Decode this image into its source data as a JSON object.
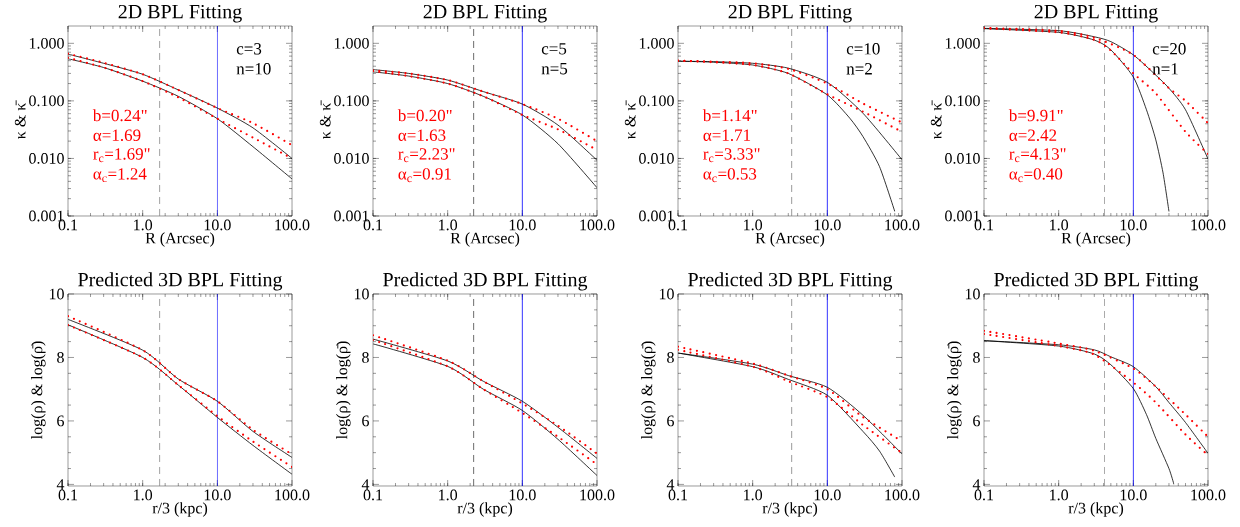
{
  "chart_data": [
    {
      "type": "line",
      "title": "2D BPL Fitting",
      "xlabel": "R (Arcsec)",
      "ylabel": "κ & κ̄",
      "log": "xy",
      "xlim": [
        0.1,
        100
      ],
      "ylim": [
        0.001,
        2
      ],
      "xticks": [
        {
          "value": 0.1,
          "label": "0.1"
        },
        {
          "value": 1,
          "label": "1.0"
        },
        {
          "value": 10,
          "label": "10.0"
        },
        {
          "value": 100,
          "label": "100.0"
        }
      ],
      "yticks": [
        0.001,
        {
          "value": 0.01,
          "label": "0.010"
        },
        {
          "value": 0.1,
          "label": "0.100"
        },
        {
          "value": 1,
          "label": "1.000"
        }
      ],
      "series": [
        {
          "color": "#000000",
          "line_style": "solid",
          "x": [
            0.1,
            0.3,
            1,
            3,
            10,
            30,
            100
          ],
          "values": [
            0.65,
            0.45,
            0.29,
            0.155,
            0.075,
            0.034,
            0.01
          ]
        },
        {
          "color": "#000000",
          "line_style": "solid",
          "x": [
            0.1,
            0.3,
            1,
            3,
            10,
            30,
            100
          ],
          "values": [
            0.54,
            0.38,
            0.22,
            0.12,
            0.049,
            0.016,
            0.0044
          ]
        },
        {
          "color": "#ff0000",
          "line_style": "dotted",
          "x": [
            0.1,
            0.3,
            1,
            3,
            10,
            30,
            100
          ],
          "values": [
            0.66,
            0.46,
            0.29,
            0.155,
            0.075,
            0.041,
            0.017
          ]
        },
        {
          "color": "#ff0000",
          "line_style": "dotted",
          "x": [
            0.1,
            0.3,
            1,
            3,
            10,
            30,
            100
          ],
          "values": [
            0.56,
            0.38,
            0.22,
            0.115,
            0.049,
            0.023,
            0.01
          ]
        }
      ],
      "ref_lines": [
        {
          "axis": "x",
          "value": 1.69,
          "color": "#808080",
          "line_style": "dashed"
        },
        {
          "axis": "x",
          "value": 10,
          "color": "#0000ff",
          "line_style": "solid"
        }
      ],
      "annotations": [
        "c=3",
        "n=10",
        "b=0.24\"",
        "α=1.69",
        "r$_{c}$=1.69\"",
        "α$_{c}$=1.24"
      ]
    },
    {
      "type": "line",
      "title": "2D BPL Fitting",
      "xlabel": "R (Arcsec)",
      "ylabel": "κ & κ̄",
      "log": "xy",
      "xlim": [
        0.1,
        100
      ],
      "ylim": [
        0.001,
        2
      ],
      "xticks": [
        {
          "value": 0.1,
          "label": "0.1"
        },
        {
          "value": 1,
          "label": "1.0"
        },
        {
          "value": 10,
          "label": "10.0"
        },
        {
          "value": 100,
          "label": "100.0"
        }
      ],
      "yticks": [
        0.001,
        {
          "value": 0.01,
          "label": "0.010"
        },
        {
          "value": 0.1,
          "label": "0.100"
        },
        {
          "value": 1,
          "label": "1.000"
        }
      ],
      "series": [
        {
          "color": "#000000",
          "line_style": "solid",
          "x": [
            0.1,
            0.3,
            1,
            3,
            10,
            30,
            100
          ],
          "values": [
            0.35,
            0.3,
            0.23,
            0.145,
            0.088,
            0.038,
            0.0093
          ]
        },
        {
          "color": "#000000",
          "line_style": "solid",
          "x": [
            0.1,
            0.3,
            1,
            3,
            10,
            30,
            100
          ],
          "values": [
            0.32,
            0.27,
            0.2,
            0.12,
            0.057,
            0.018,
            0.0031
          ]
        },
        {
          "color": "#ff0000",
          "line_style": "dotted",
          "x": [
            0.1,
            0.3,
            1,
            3,
            10,
            30,
            100
          ],
          "values": [
            0.34,
            0.3,
            0.23,
            0.145,
            0.088,
            0.049,
            0.02
          ]
        },
        {
          "color": "#ff0000",
          "line_style": "dotted",
          "x": [
            0.1,
            0.3,
            1,
            3,
            10,
            30,
            100
          ],
          "values": [
            0.33,
            0.27,
            0.2,
            0.12,
            0.057,
            0.032,
            0.014
          ]
        }
      ],
      "ref_lines": [
        {
          "axis": "x",
          "value": 2.23,
          "color": "#404040",
          "line_style": "dashed"
        },
        {
          "axis": "x",
          "value": 10,
          "color": "#0000ff",
          "line_style": "solid"
        }
      ],
      "annotations": [
        "c=5",
        "n=5",
        "b=0.20\"",
        "α=1.63",
        "r$_{c}$=2.23\"",
        "α$_{c}$=0.91"
      ]
    },
    {
      "type": "line",
      "title": "2D BPL Fitting",
      "xlabel": "R (Arcsec)",
      "ylabel": "κ & κ̄",
      "log": "xy",
      "xlim": [
        0.1,
        100
      ],
      "ylim": [
        0.001,
        2
      ],
      "xticks": [
        {
          "value": 0.1,
          "label": "0.1"
        },
        {
          "value": 1,
          "label": "1.0"
        },
        {
          "value": 10,
          "label": "10.0"
        },
        {
          "value": 100,
          "label": "100.0"
        }
      ],
      "yticks": [
        0.001,
        {
          "value": 0.01,
          "label": "0.010"
        },
        {
          "value": 0.1,
          "label": "0.100"
        },
        {
          "value": 1,
          "label": "1.000"
        }
      ],
      "series": [
        {
          "color": "#000000",
          "line_style": "solid",
          "x": [
            0.1,
            0.3,
            1,
            3,
            10,
            30,
            100
          ],
          "values": [
            0.49,
            0.48,
            0.45,
            0.37,
            0.21,
            0.061,
            0.0095
          ]
        },
        {
          "color": "#000000",
          "line_style": "solid",
          "x": [
            0.1,
            0.3,
            1,
            3,
            10,
            20,
            30,
            50,
            80
          ],
          "values": [
            0.49,
            0.47,
            0.42,
            0.3,
            0.127,
            0.05,
            0.024,
            0.0072,
            0.0012
          ]
        },
        {
          "color": "#ff0000",
          "line_style": "dotted",
          "x": [
            0.1,
            0.3,
            1,
            3,
            10,
            30,
            100
          ],
          "values": [
            0.5,
            0.48,
            0.45,
            0.36,
            0.2,
            0.09,
            0.042
          ]
        },
        {
          "color": "#ff0000",
          "line_style": "dotted",
          "x": [
            0.1,
            0.3,
            1,
            3,
            10,
            30,
            100
          ],
          "values": [
            0.5,
            0.47,
            0.42,
            0.3,
            0.13,
            0.065,
            0.029
          ]
        }
      ],
      "ref_lines": [
        {
          "axis": "x",
          "value": 3.33,
          "color": "#808080",
          "line_style": "dashed"
        },
        {
          "axis": "x",
          "value": 10,
          "color": "#0000ff",
          "line_style": "solid"
        }
      ],
      "annotations": [
        "c=10",
        "n=2",
        "b=1.14\"",
        "α=1.71",
        "r$_{c}$=3.33\"",
        "α$_{c}$=0.53"
      ]
    },
    {
      "type": "line",
      "title": "2D BPL Fitting",
      "xlabel": "R (Arcsec)",
      "ylabel": "κ & κ̄",
      "log": "xy",
      "xlim": [
        0.1,
        100
      ],
      "ylim": [
        0.001,
        2
      ],
      "xticks": [
        {
          "value": 0.1,
          "label": "0.1"
        },
        {
          "value": 1,
          "label": "1.0"
        },
        {
          "value": 10,
          "label": "10.0"
        },
        {
          "value": 100,
          "label": "100.0"
        }
      ],
      "yticks": [
        0.001,
        {
          "value": 0.01,
          "label": "0.010"
        },
        {
          "value": 0.1,
          "label": "0.100"
        },
        {
          "value": 1,
          "label": "1.000"
        }
      ],
      "series": [
        {
          "color": "#000000",
          "line_style": "solid",
          "x": [
            0.1,
            1,
            3,
            5,
            10,
            20,
            30,
            50,
            100
          ],
          "values": [
            1.82,
            1.66,
            1.3,
            1.07,
            0.63,
            0.28,
            0.166,
            0.07,
            0.0098
          ]
        },
        {
          "color": "#000000",
          "line_style": "solid",
          "x": [
            0.1,
            1,
            3,
            5,
            10,
            15,
            20,
            25,
            30
          ],
          "values": [
            1.8,
            1.55,
            1.14,
            0.77,
            0.26,
            0.07,
            0.021,
            0.0056,
            0.0012
          ]
        },
        {
          "color": "#ff0000",
          "line_style": "dotted",
          "x": [
            0.1,
            1,
            3,
            10,
            30,
            50,
            100
          ],
          "values": [
            1.85,
            1.65,
            1.25,
            0.63,
            0.166,
            0.1,
            0.041
          ]
        },
        {
          "color": "#ff0000",
          "line_style": "dotted",
          "x": [
            0.1,
            1,
            3,
            5,
            10,
            20,
            50,
            100
          ],
          "values": [
            1.82,
            1.55,
            1.15,
            0.75,
            0.3,
            0.135,
            0.029,
            0.012
          ]
        }
      ],
      "ref_lines": [
        {
          "axis": "x",
          "value": 4.13,
          "color": "#808080",
          "line_style": "dashed"
        },
        {
          "axis": "x",
          "value": 10,
          "color": "#0000ff",
          "line_style": "solid"
        }
      ],
      "annotations": [
        "c=20",
        "n=1",
        "b=9.91\"",
        "α=2.42",
        "r$_{c}$=4.13\"",
        "α$_{c}$=0.40"
      ]
    },
    {
      "type": "line",
      "title": "Predicted 3D BPL Fitting",
      "xlabel": "r/3 (kpc)",
      "ylabel": "log(ρ) & log(ρ̄)",
      "log": "x",
      "xlim": [
        0.1,
        100
      ],
      "ylim": [
        3.95,
        10
      ],
      "xticks": [
        {
          "value": 0.1,
          "label": "0.1"
        },
        {
          "value": 1,
          "label": "1.0"
        },
        {
          "value": 10,
          "label": "10.0"
        },
        {
          "value": 100,
          "label": "100.0"
        }
      ],
      "yticks": [
        4,
        6,
        8,
        10
      ],
      "series": [
        {
          "color": "#000000",
          "line_style": "solid",
          "x": [
            0.1,
            1,
            3,
            10,
            30,
            100
          ],
          "values": [
            9.2,
            8.23,
            7.32,
            6.62,
            5.67,
            4.85
          ]
        },
        {
          "color": "#000000",
          "line_style": "solid",
          "x": [
            0.1,
            1,
            3,
            10,
            30,
            100
          ],
          "values": [
            9.03,
            8.0,
            7.13,
            6.11,
            5.23,
            4.32
          ]
        },
        {
          "color": "#ff0000",
          "line_style": "dotted",
          "x": [
            0.1,
            1,
            3,
            10,
            30,
            100
          ],
          "values": [
            9.3,
            8.23,
            7.32,
            6.62,
            5.72,
            4.95
          ]
        },
        {
          "color": "#ff0000",
          "line_style": "dotted",
          "x": [
            0.1,
            1,
            3,
            10,
            30,
            100
          ],
          "values": [
            9.02,
            8.0,
            7.13,
            6.15,
            5.35,
            4.55
          ]
        }
      ],
      "ref_lines": [
        {
          "axis": "x",
          "value": 1.69,
          "color": "#808080",
          "line_style": "dashed"
        },
        {
          "axis": "x",
          "value": 10,
          "color": "#0000ff",
          "line_style": "solid"
        }
      ]
    },
    {
      "type": "line",
      "title": "Predicted 3D BPL Fitting",
      "xlabel": "r/3 (kpc)",
      "ylabel": "log(ρ) & log(ρ̄)",
      "log": "x",
      "xlim": [
        0.1,
        100
      ],
      "ylim": [
        3.95,
        10
      ],
      "xticks": [
        {
          "value": 0.1,
          "label": "0.1"
        },
        {
          "value": 1,
          "label": "1.0"
        },
        {
          "value": 10,
          "label": "10.0"
        },
        {
          "value": 100,
          "label": "100.0"
        }
      ],
      "yticks": [
        4,
        6,
        8,
        10
      ],
      "series": [
        {
          "color": "#000000",
          "line_style": "solid",
          "x": [
            0.1,
            1,
            3,
            10,
            30,
            100
          ],
          "values": [
            8.58,
            7.89,
            7.25,
            6.62,
            5.8,
            4.82
          ]
        },
        {
          "color": "#000000",
          "line_style": "solid",
          "x": [
            0.1,
            1,
            3,
            10,
            30,
            100
          ],
          "values": [
            8.43,
            7.72,
            7.0,
            6.33,
            5.42,
            4.28
          ]
        },
        {
          "color": "#ff0000",
          "line_style": "dotted",
          "x": [
            0.1,
            1,
            3,
            10,
            30,
            100
          ],
          "values": [
            8.7,
            7.9,
            7.25,
            6.55,
            5.85,
            4.97
          ]
        },
        {
          "color": "#ff0000",
          "line_style": "dotted",
          "x": [
            0.1,
            1,
            3,
            10,
            30,
            100
          ],
          "values": [
            8.55,
            7.72,
            7.0,
            6.25,
            5.5,
            4.63
          ]
        }
      ],
      "ref_lines": [
        {
          "axis": "x",
          "value": 2.23,
          "color": "#404040",
          "line_style": "dashed"
        },
        {
          "axis": "x",
          "value": 10,
          "color": "#0000ff",
          "line_style": "solid"
        }
      ]
    },
    {
      "type": "line",
      "title": "Predicted 3D BPL Fitting",
      "xlabel": "r/3 (kpc)",
      "ylabel": "log(ρ) & log(ρ̄)",
      "log": "x",
      "xlim": [
        0.1,
        100
      ],
      "ylim": [
        3.95,
        10
      ],
      "xticks": [
        {
          "value": 0.1,
          "label": "0.1"
        },
        {
          "value": 1,
          "label": "1.0"
        },
        {
          "value": 10,
          "label": "10.0"
        },
        {
          "value": 100,
          "label": "100.0"
        }
      ],
      "yticks": [
        4,
        6,
        8,
        10
      ],
      "series": [
        {
          "color": "#000000",
          "line_style": "solid",
          "x": [
            0.1,
            1,
            3,
            10,
            30,
            100
          ],
          "values": [
            8.14,
            7.79,
            7.43,
            7.06,
            6.18,
            4.96
          ]
        },
        {
          "color": "#000000",
          "line_style": "solid",
          "x": [
            0.1,
            1,
            3,
            10,
            30,
            50,
            80
          ],
          "values": [
            8.14,
            7.71,
            7.31,
            6.81,
            5.67,
            5.05,
            4.23
          ]
        },
        {
          "color": "#ff0000",
          "line_style": "dotted",
          "x": [
            0.1,
            1,
            3,
            10,
            30,
            100
          ],
          "values": [
            8.34,
            7.81,
            7.43,
            7.0,
            6.12,
            5.36
          ]
        },
        {
          "color": "#ff0000",
          "line_style": "dotted",
          "x": [
            0.1,
            1,
            3,
            10,
            30,
            100
          ],
          "values": [
            8.24,
            7.71,
            7.25,
            6.75,
            5.87,
            4.99
          ]
        }
      ],
      "ref_lines": [
        {
          "axis": "x",
          "value": 3.33,
          "color": "#808080",
          "line_style": "dashed"
        },
        {
          "axis": "x",
          "value": 10,
          "color": "#0000ff",
          "line_style": "solid"
        }
      ]
    },
    {
      "type": "line",
      "title": "Predicted 3D BPL Fitting",
      "xlabel": "r/3 (kpc)",
      "ylabel": "log(ρ) & log(ρ̄)",
      "log": "x",
      "xlim": [
        0.1,
        100
      ],
      "ylim": [
        3.95,
        10
      ],
      "xticks": [
        {
          "value": 0.1,
          "label": "0.1"
        },
        {
          "value": 1,
          "label": "1.0"
        },
        {
          "value": 10,
          "label": "10.0"
        },
        {
          "value": 100,
          "label": "100.0"
        }
      ],
      "yticks": [
        4,
        6,
        8,
        10
      ],
      "series": [
        {
          "color": "#000000",
          "line_style": "solid",
          "x": [
            0.1,
            1,
            3,
            5,
            10,
            20,
            30,
            50,
            100
          ],
          "values": [
            8.53,
            8.4,
            8.24,
            8.02,
            7.71,
            7.08,
            6.58,
            5.95,
            4.98
          ]
        },
        {
          "color": "#000000",
          "line_style": "solid",
          "x": [
            0.1,
            1,
            3,
            5,
            10,
            15,
            20,
            30,
            35
          ],
          "values": [
            8.53,
            8.36,
            8.11,
            7.77,
            7.02,
            6.2,
            5.45,
            4.5,
            4.0
          ]
        },
        {
          "color": "#ff0000",
          "line_style": "dotted",
          "x": [
            0.1,
            1,
            3,
            10,
            20,
            50,
            100
          ],
          "values": [
            8.84,
            8.44,
            8.21,
            7.65,
            7.08,
            6.2,
            5.5
          ]
        },
        {
          "color": "#ff0000",
          "line_style": "dotted",
          "x": [
            0.1,
            1,
            3,
            10,
            20,
            50,
            100
          ],
          "values": [
            8.74,
            8.36,
            8.09,
            7.21,
            6.58,
            5.57,
            4.92
          ]
        }
      ],
      "ref_lines": [
        {
          "axis": "x",
          "value": 4.13,
          "color": "#808080",
          "line_style": "dashed"
        },
        {
          "axis": "x",
          "value": 10,
          "color": "#0000ff",
          "line_style": "solid"
        }
      ]
    }
  ]
}
